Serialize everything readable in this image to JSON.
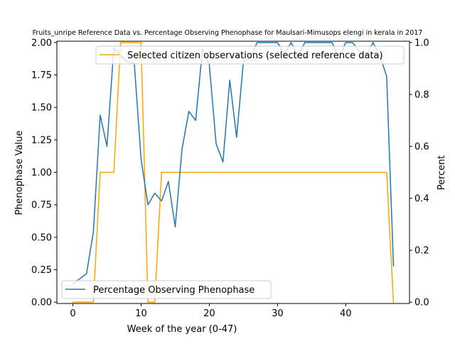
{
  "chart_data": {
    "type": "line",
    "title": "Fruits_unripe Reference Data vs. Percentage Observing Phenophase for Maulsari-Mimusops elengi in kerala in 2017",
    "xlabel": "Week of the year (0-47)",
    "ylabel_left": "Phenophase Value",
    "ylabel_right": "Percent",
    "xlim": [
      -2.35,
      49.35
    ],
    "ylim_left": [
      -0.01,
      2.01
    ],
    "ylim_right": [
      -0.005,
      1.005
    ],
    "x_ticks": [
      0,
      10,
      20,
      30,
      40
    ],
    "x_tick_labels": [
      "0",
      "10",
      "20",
      "30",
      "40"
    ],
    "y_left_ticks": [
      0.0,
      0.25,
      0.5,
      0.75,
      1.0,
      1.25,
      1.5,
      1.75,
      2.0
    ],
    "y_left_tick_labels": [
      "0.00",
      "0.25",
      "0.50",
      "0.75",
      "1.00",
      "1.25",
      "1.50",
      "1.75",
      "2.00"
    ],
    "y_right_ticks": [
      0.0,
      0.2,
      0.4,
      0.6,
      0.8,
      1.0
    ],
    "y_right_tick_labels": [
      "0.0",
      "0.2",
      "0.4",
      "0.6",
      "0.8",
      "1.0"
    ],
    "grid": false,
    "series": [
      {
        "name": "Selected citizen observations (selected reference data)",
        "axis": "left",
        "color": "#ffa500",
        "legend_position": "upper right",
        "x": [
          0,
          1,
          2,
          3,
          4,
          5,
          6,
          7,
          8,
          9,
          10,
          11,
          12,
          13,
          14,
          15,
          16,
          17,
          18,
          19,
          20,
          21,
          22,
          23,
          24,
          25,
          26,
          27,
          28,
          29,
          30,
          31,
          32,
          33,
          34,
          35,
          36,
          37,
          38,
          39,
          40,
          41,
          42,
          43,
          44,
          45,
          46,
          47
        ],
        "values": [
          0,
          0,
          0,
          0,
          1,
          1,
          1,
          2,
          2,
          2,
          2,
          0,
          0,
          1,
          1,
          1,
          1,
          1,
          1,
          1,
          1,
          1,
          1,
          1,
          1,
          1,
          1,
          1,
          1,
          1,
          1,
          1,
          1,
          1,
          1,
          1,
          1,
          1,
          1,
          1,
          1,
          1,
          1,
          1,
          1,
          1,
          1,
          0
        ]
      },
      {
        "name": "Percentage Observing Phenophase",
        "axis": "right",
        "color": "#1f77b4",
        "legend_position": "lower left",
        "x": [
          0,
          1,
          2,
          3,
          4,
          5,
          6,
          7,
          8,
          9,
          10,
          11,
          12,
          13,
          14,
          15,
          16,
          17,
          18,
          19,
          20,
          21,
          22,
          23,
          24,
          25,
          26,
          27,
          28,
          29,
          30,
          31,
          32,
          33,
          34,
          35,
          36,
          37,
          38,
          39,
          40,
          41,
          42,
          43,
          44,
          45,
          46,
          47
        ],
        "values": [
          0.07,
          0.09,
          0.11,
          0.27,
          0.72,
          0.6,
          0.98,
          0.95,
          0.925,
          0.92,
          0.55,
          0.375,
          0.42,
          0.39,
          0.465,
          0.29,
          0.59,
          0.735,
          0.7,
          0.975,
          0.915,
          0.61,
          0.54,
          0.855,
          0.635,
          0.925,
          0.94,
          1.0,
          1.0,
          1.0,
          1.0,
          0.955,
          1.0,
          0.945,
          1.0,
          1.0,
          1.0,
          1.0,
          1.0,
          0.94,
          1.0,
          1.0,
          0.965,
          0.95,
          1.0,
          0.95,
          0.87,
          0.14
        ]
      }
    ]
  }
}
